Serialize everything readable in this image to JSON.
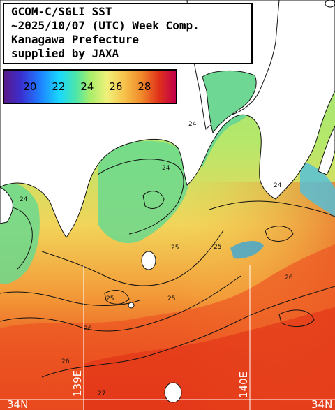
{
  "title": {
    "lines": [
      "GCOM-C/SGLI SST",
      "~2025/10/07 (UTC) Week Comp.",
      "Kanagawa Prefecture",
      "supplied by JAXA"
    ]
  },
  "legend": {
    "ticks": [
      {
        "value": 20,
        "label": "20"
      },
      {
        "value": 22,
        "label": "22"
      },
      {
        "value": 24,
        "label": "24"
      },
      {
        "value": 26,
        "label": "26"
      },
      {
        "value": 28,
        "label": "28"
      }
    ],
    "range_min": 18.2,
    "range_max": 30.2
  },
  "grid": {
    "lon_labels": [
      "139E",
      "140E"
    ],
    "lat_labels": [
      "34N",
      "34N"
    ]
  },
  "contour_labels": [
    "24",
    "24",
    "24",
    "24",
    "25",
    "25",
    "25",
    "25",
    "26",
    "26",
    "26",
    "27"
  ],
  "colors": {
    "land": "#ffffff",
    "contour": "#111111",
    "gridline": "#ffffff",
    "legend_border": "#000000"
  }
}
